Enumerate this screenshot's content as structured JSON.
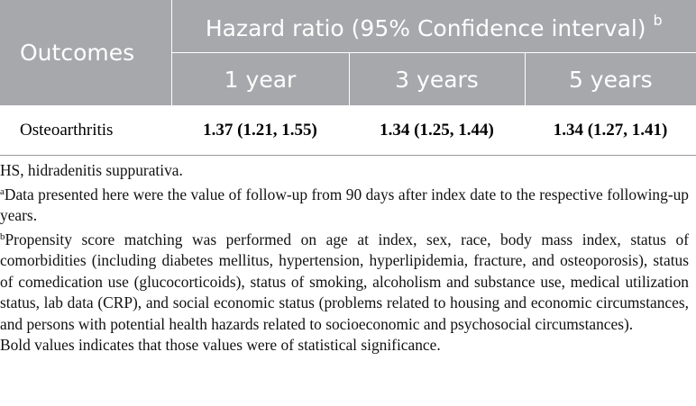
{
  "table": {
    "header": {
      "outcomes": "Outcomes",
      "hazard_ratio": "Hazard ratio (95% Confidence interval)",
      "hazard_ratio_sup": "b",
      "periods": [
        "1 year",
        "3 years",
        "5 years"
      ]
    },
    "rows": [
      [
        "Osteoarthritis",
        "1.37 (1.21, 1.55)",
        "1.34 (1.25, 1.44)",
        "1.34 (1.27, 1.41)"
      ]
    ]
  },
  "footnotes": [
    {
      "text": "HS, hidradenitis suppurativa."
    },
    {
      "mark": "a",
      "text": "Data presented here were the value of follow-up from 90 days after index date to the respective following-up years."
    },
    {
      "mark": "b",
      "text": "Propensity score matching was performed on age at index, sex, race, body mass index, status of comorbidities (including diabetes mellitus, hypertension, hyperlipidemia, fracture, and osteoporosis), status of comedication use (glucocorticoids), status of smoking, alcoholism and substance use, medical utilization status, lab data (CRP), and social economic status (problems related to housing and economic circumstances, and persons with potential health hazards related to socioeconomic and psychosocial circumstances)."
    },
    {
      "text": "Bold values indicates that those values were of statistical significance."
    }
  ]
}
